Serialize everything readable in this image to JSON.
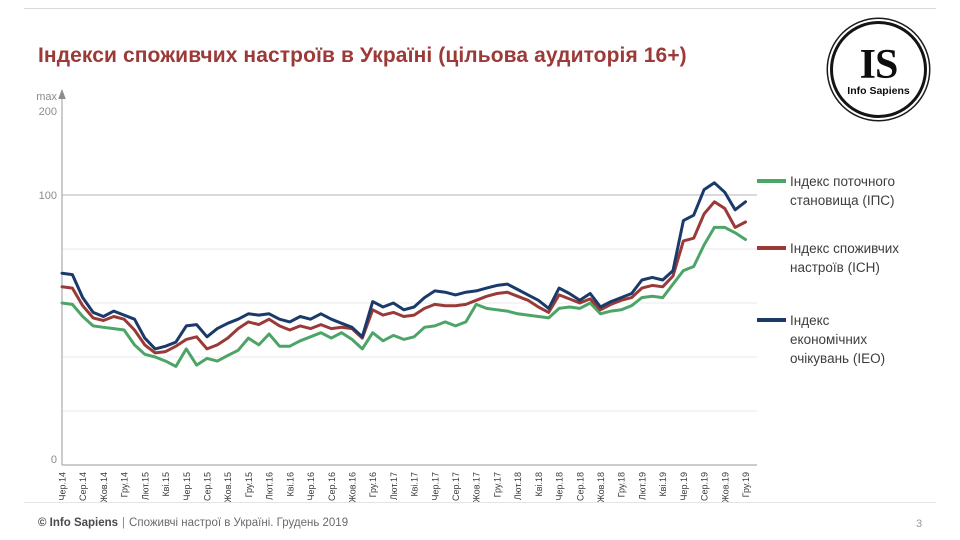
{
  "slide": {
    "title": "Індекси споживчих настроїв в Україні (цільова аудиторія 16+)",
    "logo": {
      "initials": "IS",
      "name": "Info Sapiens"
    },
    "footer": {
      "brand": "© Info Sapiens",
      "divider": "|",
      "text": "Споживчі настрої в Україні. Грудень 2019"
    },
    "page_number": "3"
  },
  "colors": {
    "title": "#9c3a38",
    "axis": "#9a9a9a",
    "gridline_minor": "#eaeaea",
    "gridline_major": "#b3b3b3",
    "ips_green": "#4ca566",
    "ich_red": "#9a3a38",
    "ieo_navy": "#1a3a69"
  },
  "chart_data": {
    "type": "line",
    "title": "",
    "xlabel": "",
    "ylabel": "",
    "legend_position": "right",
    "grid": "horizontal",
    "ylim": [
      0,
      135
    ],
    "index_theoretical_max": 200,
    "y_axis": {
      "arrow_label": "max",
      "arrow_value_label": "200",
      "ticks": [
        {
          "value": 100,
          "label": "100"
        },
        {
          "value": 0,
          "label": "0"
        }
      ],
      "minor_gridlines": [
        20,
        40,
        60,
        80
      ],
      "major_gridline": 100
    },
    "months_per_label": 2,
    "categories": [
      "Чер.14",
      "Сер.14",
      "Жов.14",
      "Гру.14",
      "Лют.15",
      "Кві.15",
      "Чер.15",
      "Сер.15",
      "Жов.15",
      "Гру.15",
      "Лют.16",
      "Кві.16",
      "Чер.16",
      "Сер.16",
      "Жов.16",
      "Гру.16",
      "Лют.17",
      "Кві.17",
      "Чер.17",
      "Сер.17",
      "Жов.17",
      "Гру.17",
      "Лют.18",
      "Кві.18",
      "Чер.18",
      "Сер.18",
      "Жов.18",
      "Гру.18",
      "Лют.19",
      "Кві.19",
      "Чер.19",
      "Сер.19",
      "Жов.19",
      "Гру.19"
    ],
    "legend": [
      {
        "label": "Індекс поточного\nстановища (ІПС)"
      },
      {
        "label": "Індекс споживчих\nнастроїв (ІСН)"
      },
      {
        "label": "Індекс\nекономічних\nочікувань (ІЕО)"
      }
    ],
    "series": [
      {
        "name": "Індекс поточного становища (ІПС)",
        "color": "#4ca566",
        "values": [
          60,
          59.5,
          55,
          51.5,
          51,
          50.5,
          50,
          44.5,
          41,
          40,
          38.5,
          36.5,
          43,
          37,
          39.5,
          38.5,
          40.5,
          42.5,
          47,
          44.5,
          48.5,
          44,
          44,
          46,
          47.5,
          49,
          47,
          49,
          46.5,
          43,
          49,
          46,
          48,
          46.5,
          47.5,
          51,
          51.5,
          53,
          51.5,
          53,
          59.5,
          58,
          57.5,
          57,
          56,
          55.5,
          55,
          54.5,
          58,
          58.5,
          58,
          60,
          56,
          57,
          57.5,
          59,
          62,
          62.5,
          62,
          67,
          72,
          73.5,
          81.5,
          88,
          88,
          86,
          83.5
        ]
      },
      {
        "name": "Індекс споживчих настроїв (ІСН)",
        "color": "#9a3a38",
        "values": [
          66,
          65.5,
          59,
          54.5,
          53.5,
          55,
          54,
          50,
          44.5,
          41.5,
          42,
          44,
          46.5,
          47.5,
          43,
          44.5,
          47,
          50.5,
          53,
          52,
          54,
          51.5,
          50,
          51.5,
          50.5,
          52,
          50.5,
          51,
          50.5,
          47,
          57.5,
          55.5,
          56.5,
          55,
          55.5,
          58,
          59.5,
          59,
          59,
          59.5,
          61,
          62.5,
          63.5,
          64,
          62.5,
          61,
          58.5,
          56.5,
          63,
          61.5,
          60,
          61.5,
          57.5,
          59.5,
          61,
          62,
          65.5,
          66.5,
          66,
          70,
          83,
          84,
          93,
          97.5,
          95,
          88,
          90
        ]
      },
      {
        "name": "Індекс економічних очікувань (ІЕО)",
        "color": "#1a3a69",
        "values": [
          71,
          70.5,
          62,
          56.5,
          55,
          57,
          55.5,
          54,
          47,
          43,
          44,
          45.5,
          51.5,
          52,
          47.5,
          50.5,
          52.5,
          54,
          56,
          55.5,
          56,
          54,
          53,
          55,
          54,
          56,
          54,
          52.5,
          51,
          47.5,
          60.5,
          58.5,
          60,
          57.5,
          58.5,
          62,
          64.5,
          64,
          63,
          64,
          64.5,
          65.5,
          66.5,
          67,
          65,
          63,
          61,
          58,
          65.5,
          63.5,
          61,
          63.5,
          58.5,
          60.5,
          62,
          63.5,
          68.5,
          69.5,
          68.5,
          72,
          90.5,
          92.5,
          102,
          104.5,
          101,
          94.5,
          97.5
        ]
      }
    ]
  }
}
